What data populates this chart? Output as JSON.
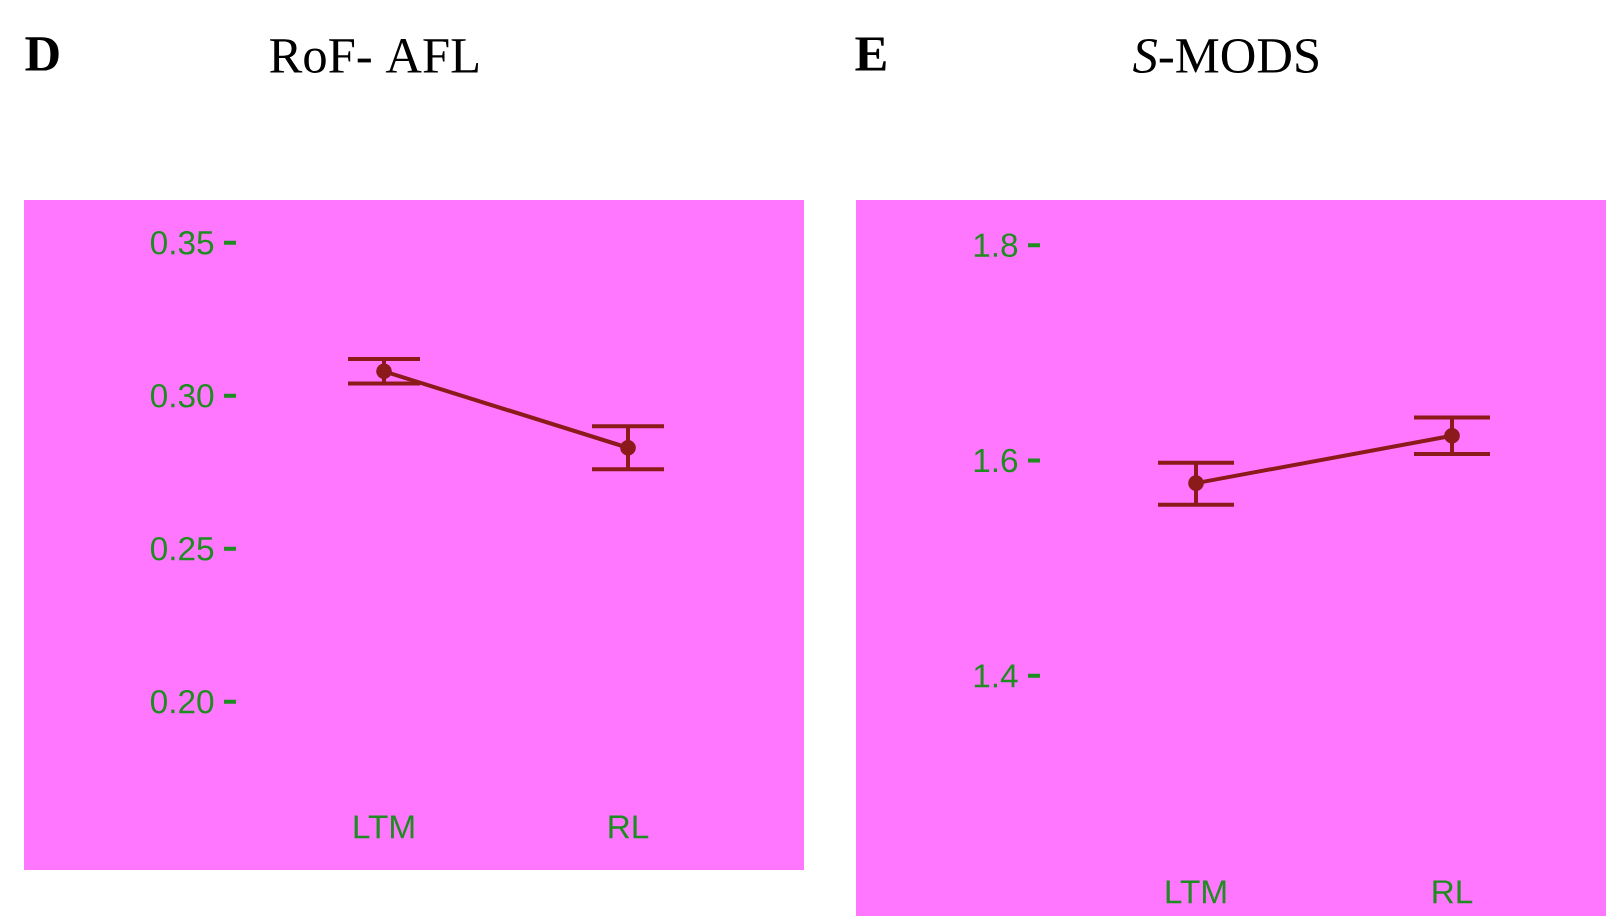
{
  "chart_data": [
    {
      "type": "line",
      "title": "RoF- AFL",
      "annotations": [
        "D"
      ],
      "categories": [
        "LTM",
        "RL"
      ],
      "series": [
        {
          "color": "#8b1a1a",
          "values": [
            0.308,
            0.283
          ],
          "errors": [
            [
              0.304,
              0.312
            ],
            [
              0.276,
              0.29
            ]
          ]
        }
      ],
      "ylim": [
        0.145,
        0.364
      ],
      "yticks": [
        {
          "value": 0.2,
          "label": "0.20"
        },
        {
          "value": 0.25,
          "label": "0.25"
        },
        {
          "value": 0.3,
          "label": "0.30"
        },
        {
          "value": 0.35,
          "label": "0.35"
        }
      ],
      "marker": "circle",
      "grid": false
    },
    {
      "type": "line",
      "title": "*S*-MODS",
      "annotations": [
        "E"
      ],
      "categories": [
        "LTM",
        "RL"
      ],
      "series": [
        {
          "color": "#8b1a1a",
          "values": [
            1.579,
            1.623
          ],
          "errors": [
            [
              1.559,
              1.598
            ],
            [
              1.606,
              1.64
            ]
          ]
        }
      ],
      "ylim": [
        1.177,
        1.842
      ],
      "yticks": [
        1.4,
        1.6,
        1.8
      ],
      "marker": "circle",
      "grid": false
    }
  ]
}
